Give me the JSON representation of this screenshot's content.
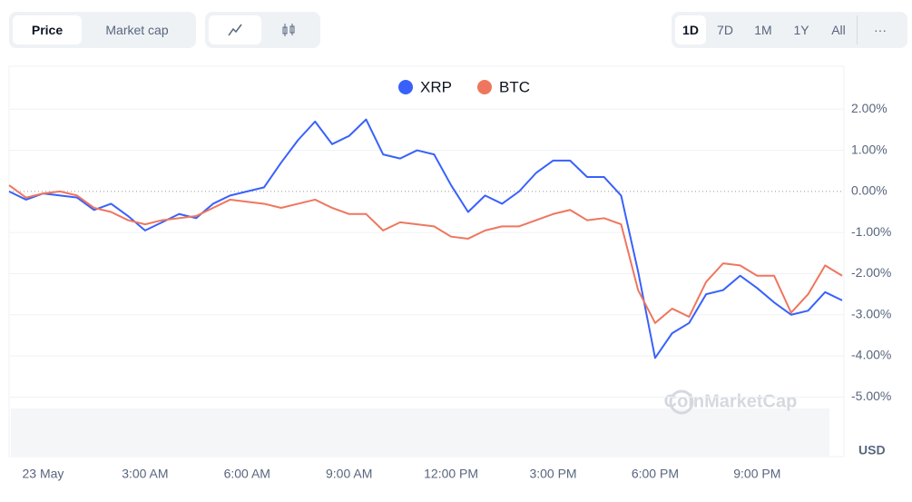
{
  "controls": {
    "tabs": [
      "Price",
      "Market cap"
    ],
    "ranges": [
      "1D",
      "7D",
      "1M",
      "1Y",
      "All"
    ],
    "more": "···"
  },
  "chart_data": {
    "type": "line",
    "categories": [
      null,
      null,
      "23 May",
      null,
      null,
      null,
      null,
      null,
      "3:00 AM",
      null,
      null,
      null,
      null,
      null,
      "6:00 AM",
      null,
      null,
      null,
      null,
      null,
      "9:00 AM",
      null,
      null,
      null,
      null,
      null,
      "12:00 PM",
      null,
      null,
      null,
      null,
      null,
      "3:00 PM",
      null,
      null,
      null,
      null,
      null,
      "6:00 PM",
      null,
      null,
      null,
      null,
      null,
      "9:00 PM",
      null,
      null,
      null,
      null,
      null
    ],
    "series": [
      {
        "name": "XRP",
        "color": "#3861fb",
        "values": [
          0.0,
          -0.2,
          -0.05,
          -0.1,
          -0.15,
          -0.45,
          -0.3,
          -0.6,
          -0.95,
          -0.75,
          -0.55,
          -0.65,
          -0.3,
          -0.1,
          0.0,
          0.1,
          0.7,
          1.25,
          1.7,
          1.15,
          1.35,
          1.75,
          0.9,
          0.8,
          1.0,
          0.9,
          0.15,
          -0.5,
          -0.1,
          -0.3,
          0.0,
          0.45,
          0.75,
          0.75,
          0.35,
          0.35,
          -0.1,
          -1.95,
          -4.05,
          -3.45,
          -3.2,
          -2.5,
          -2.4,
          -2.05,
          -2.35,
          -2.7,
          -3.0,
          -2.9,
          -2.45,
          -2.65
        ]
      },
      {
        "name": "BTC",
        "color": "#ef765e",
        "values": [
          0.15,
          -0.15,
          -0.05,
          0.0,
          -0.1,
          -0.4,
          -0.5,
          -0.7,
          -0.8,
          -0.7,
          -0.65,
          -0.6,
          -0.4,
          -0.2,
          -0.25,
          -0.3,
          -0.4,
          -0.3,
          -0.2,
          -0.4,
          -0.55,
          -0.55,
          -0.95,
          -0.75,
          -0.8,
          -0.85,
          -1.1,
          -1.15,
          -0.95,
          -0.85,
          -0.85,
          -0.7,
          -0.55,
          -0.45,
          -0.7,
          -0.65,
          -0.8,
          -2.4,
          -3.2,
          -2.85,
          -3.05,
          -2.2,
          -1.75,
          -1.8,
          -2.05,
          -2.05,
          -2.95,
          -2.5,
          -1.8,
          -2.05
        ]
      }
    ],
    "ylim": [
      -6.45,
      3.0
    ],
    "yticks": [
      {
        "value": 2,
        "label": "2.00%"
      },
      {
        "value": 1,
        "label": "1.00%"
      },
      {
        "value": 0,
        "label": "0.00%"
      },
      {
        "value": -1,
        "label": "-1.00%"
      },
      {
        "value": -2,
        "label": "-2.00%"
      },
      {
        "value": -3,
        "label": "-3.00%"
      },
      {
        "value": -4,
        "label": "-4.00%"
      },
      {
        "value": -5,
        "label": "-5.00%"
      }
    ],
    "grid": true,
    "unit": "USD",
    "watermark": "CoinMarketCap"
  }
}
